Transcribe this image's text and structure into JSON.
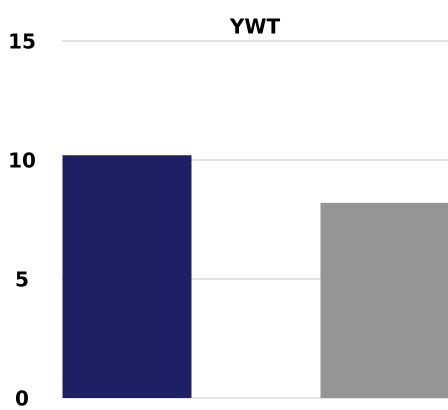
{
  "chart_data": {
    "type": "bar",
    "title": "YWT",
    "categories": [
      null,
      null
    ],
    "values": [
      10.2,
      8.2
    ],
    "colors": [
      "#1f1f66",
      "#959595"
    ],
    "ylim": [
      0,
      15
    ],
    "yticks": [
      0,
      5,
      10,
      15
    ],
    "grid": true
  }
}
